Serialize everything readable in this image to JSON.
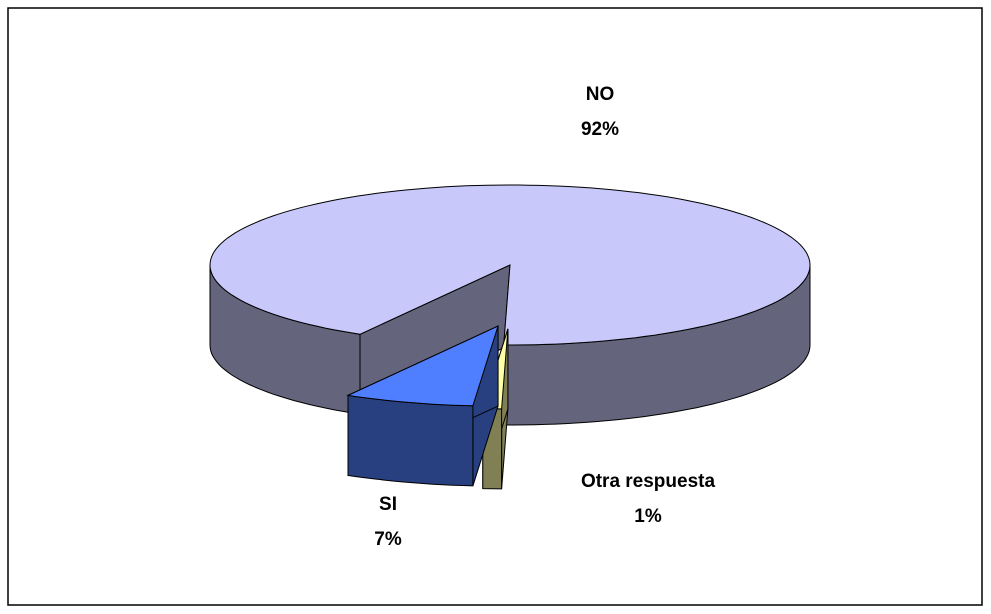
{
  "chart_data": {
    "type": "pie",
    "categories": [
      "NO",
      "Otra respuesta",
      "SI"
    ],
    "values": [
      92,
      1,
      7
    ],
    "value_labels": [
      "92%",
      "1%",
      "7%"
    ],
    "colors": [
      "#c8c8fa",
      "#ffffa8",
      "#4f7fff"
    ]
  }
}
